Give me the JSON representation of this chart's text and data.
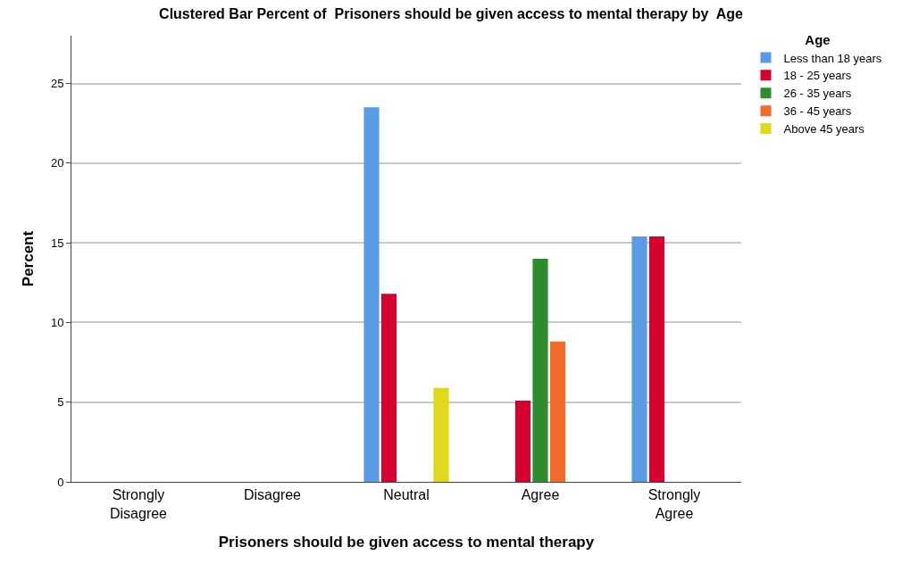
{
  "chart_data": {
    "type": "bar",
    "title": "Clustered Bar Percent of  Prisoners should be given access to mental therapy by  Age",
    "xlabel": "Prisoners should be given access to mental therapy",
    "ylabel": "Percent",
    "legend_title": "Age",
    "categories": [
      "Strongly Disagree",
      "Disagree",
      "Neutral",
      "Agree",
      "Strongly Agree"
    ],
    "series": [
      {
        "name": "Less than 18 years",
        "color": "#5a9be6",
        "values": [
          null,
          null,
          23.5,
          null,
          15.4
        ]
      },
      {
        "name": "18 - 25 years",
        "color": "#d6002e",
        "values": [
          null,
          null,
          11.8,
          5.1,
          15.4
        ]
      },
      {
        "name": "26 - 35 years",
        "color": "#2e8b2e",
        "values": [
          null,
          null,
          null,
          14.0,
          null
        ]
      },
      {
        "name": "36 - 45 years",
        "color": "#f26b2a",
        "values": [
          null,
          null,
          null,
          8.8,
          null
        ]
      },
      {
        "name": "Above 45 years",
        "color": "#e0d81a",
        "values": [
          null,
          null,
          5.9,
          null,
          null
        ]
      }
    ],
    "ylim": [
      0,
      28
    ],
    "yticks": [
      0,
      5,
      10,
      15,
      20,
      25
    ],
    "grid": "y",
    "legend": "top right"
  }
}
